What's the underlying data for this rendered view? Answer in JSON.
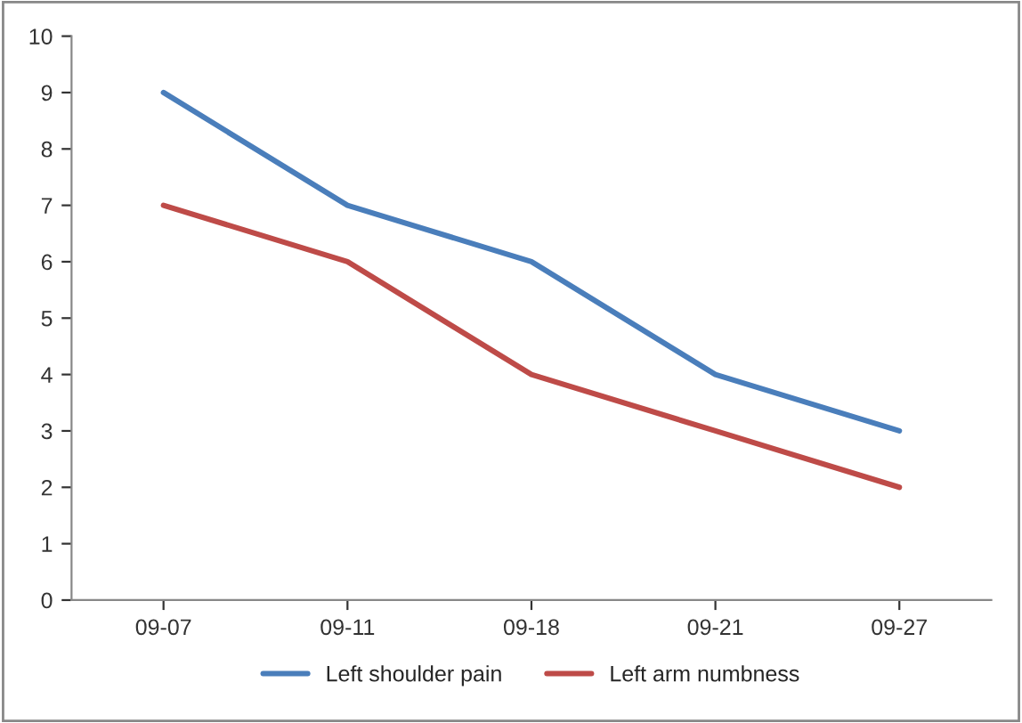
{
  "chart_data": {
    "type": "line",
    "categories": [
      "09-07",
      "09-11",
      "09-18",
      "09-21",
      "09-27"
    ],
    "series": [
      {
        "name": "Left shoulder pain",
        "color": "#4a7ebb",
        "values": [
          9,
          7,
          6,
          4,
          3
        ]
      },
      {
        "name": "Left arm numbness",
        "color": "#be4b48",
        "values": [
          7,
          6,
          4,
          3,
          2
        ]
      }
    ],
    "ylim": [
      0,
      10
    ],
    "yticks": [
      0,
      1,
      2,
      3,
      4,
      5,
      6,
      7,
      8,
      9,
      10
    ],
    "grid": false,
    "legend": "bottom",
    "marker": "none",
    "line_style": "solid"
  }
}
